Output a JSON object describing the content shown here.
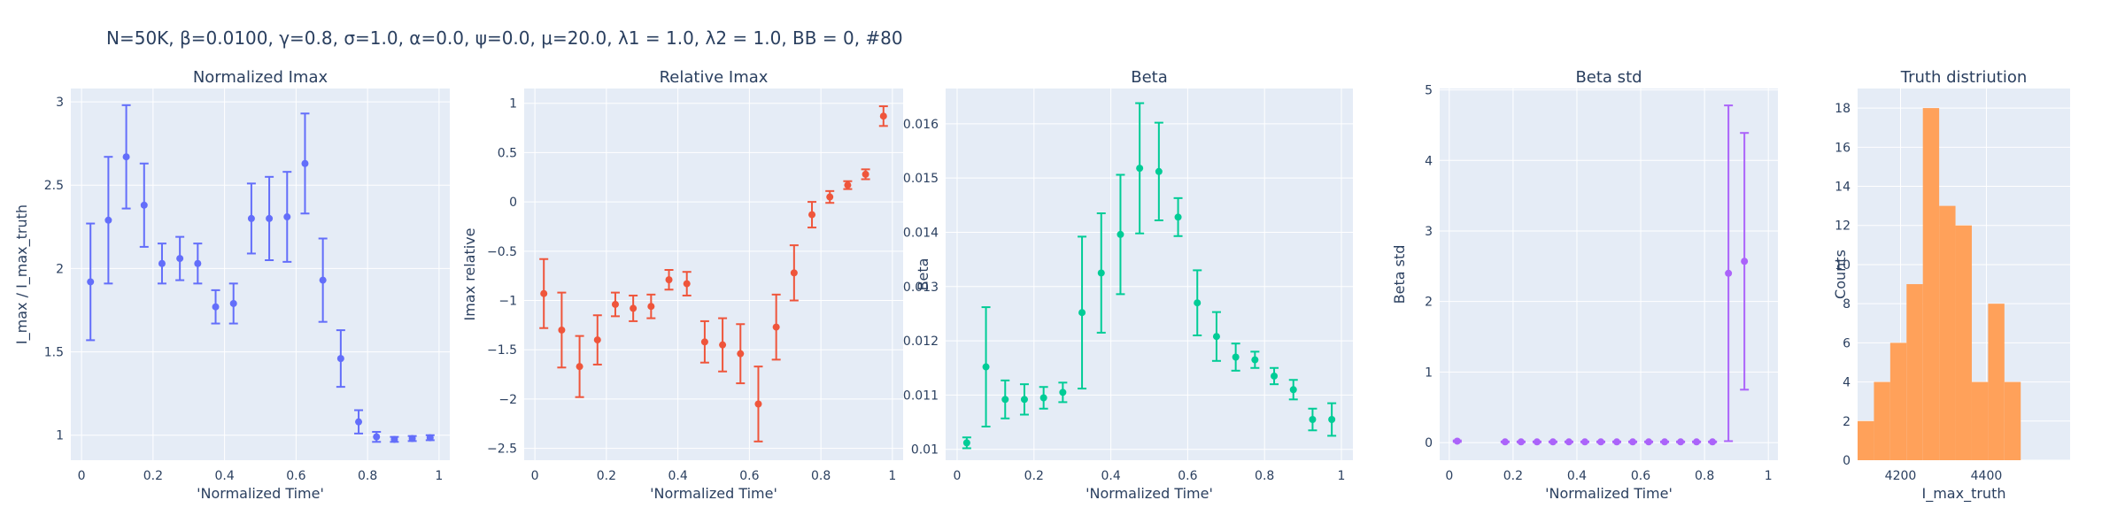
{
  "figure_title": "N=50K, β=0.0100, γ=0.8, σ=1.0,  α=0.0, ψ=0.0, μ=20.0, λ1 = 1.0, λ2 = 1.0, BB = 0, #80",
  "chart_data": [
    {
      "type": "scatter",
      "title": "Normalized Imax",
      "xlabel": "'Normalized Time'",
      "ylabel": "I_max / I_max_truth",
      "color": "#636efa",
      "xlim": [
        -0.03,
        1.03
      ],
      "ylim": [
        0.85,
        3.08
      ],
      "xticks": [
        0,
        0.2,
        0.4,
        0.6,
        0.8,
        1
      ],
      "xtick_labels": [
        "0",
        "0.2",
        "0.4",
        "0.6",
        "0.8",
        "1"
      ],
      "yticks": [
        1,
        1.5,
        2,
        2.5,
        3
      ],
      "ytick_labels": [
        "1",
        "1.5",
        "2",
        "2.5",
        "3"
      ],
      "x": [
        0.025,
        0.075,
        0.125,
        0.175,
        0.225,
        0.275,
        0.325,
        0.375,
        0.425,
        0.475,
        0.525,
        0.575,
        0.625,
        0.675,
        0.725,
        0.775,
        0.825,
        0.875,
        0.925,
        0.975
      ],
      "y": [
        1.92,
        2.29,
        2.67,
        2.38,
        2.03,
        2.06,
        2.03,
        1.77,
        1.79,
        2.3,
        2.3,
        2.31,
        2.63,
        1.93,
        1.46,
        1.08,
        0.99,
        0.975,
        0.98,
        0.985
      ],
      "err": [
        0.35,
        0.38,
        0.31,
        0.25,
        0.12,
        0.13,
        0.12,
        0.1,
        0.12,
        0.21,
        0.25,
        0.27,
        0.3,
        0.25,
        0.17,
        0.07,
        0.03,
        0.015,
        0.015,
        0.015
      ]
    },
    {
      "type": "scatter",
      "title": "Relative Imax",
      "xlabel": "'Normalized Time'",
      "ylabel": "Imax relative",
      "color": "#ef553b",
      "xlim": [
        -0.03,
        1.03
      ],
      "ylim": [
        -2.62,
        1.15
      ],
      "xticks": [
        0,
        0.2,
        0.4,
        0.6,
        0.8,
        1
      ],
      "xtick_labels": [
        "0",
        "0.2",
        "0.4",
        "0.6",
        "0.8",
        "1"
      ],
      "yticks": [
        -2.5,
        -2,
        -1.5,
        -1,
        -0.5,
        0,
        0.5,
        1
      ],
      "ytick_labels": [
        "−2.5",
        "−2",
        "−1.5",
        "−1",
        "−0.5",
        "0",
        "0.5",
        "1"
      ],
      "x": [
        0.025,
        0.075,
        0.125,
        0.175,
        0.225,
        0.275,
        0.325,
        0.375,
        0.425,
        0.475,
        0.525,
        0.575,
        0.625,
        0.675,
        0.725,
        0.775,
        0.825,
        0.875,
        0.925,
        0.975
      ],
      "y": [
        -0.93,
        -1.3,
        -1.67,
        -1.4,
        -1.04,
        -1.08,
        -1.06,
        -0.79,
        -0.83,
        -1.42,
        -1.45,
        -1.54,
        -2.05,
        -1.27,
        -0.72,
        -0.13,
        0.05,
        0.17,
        0.28,
        0.87
      ],
      "err": [
        0.35,
        0.38,
        0.31,
        0.25,
        0.12,
        0.13,
        0.12,
        0.1,
        0.12,
        0.21,
        0.27,
        0.3,
        0.38,
        0.33,
        0.28,
        0.13,
        0.06,
        0.04,
        0.05,
        0.1
      ]
    },
    {
      "type": "scatter",
      "title": "Beta",
      "xlabel": "'Normalized Time'",
      "ylabel": "Beta",
      "color": "#00cc96",
      "xlim": [
        -0.03,
        1.03
      ],
      "ylim": [
        0.0098,
        0.01665
      ],
      "xticks": [
        0,
        0.2,
        0.4,
        0.6,
        0.8,
        1
      ],
      "xtick_labels": [
        "0",
        "0.2",
        "0.4",
        "0.6",
        "0.8",
        "1"
      ],
      "yticks": [
        0.01,
        0.011,
        0.012,
        0.013,
        0.014,
        0.015,
        0.016
      ],
      "ytick_labels": [
        "0.01",
        "0.011",
        "0.012",
        "0.013",
        "0.014",
        "0.015",
        "0.016"
      ],
      "x": [
        0.025,
        0.075,
        0.125,
        0.175,
        0.225,
        0.275,
        0.325,
        0.375,
        0.425,
        0.475,
        0.525,
        0.575,
        0.625,
        0.675,
        0.725,
        0.775,
        0.825,
        0.875,
        0.925,
        0.975
      ],
      "y": [
        0.01012,
        0.01152,
        0.01092,
        0.01092,
        0.01095,
        0.01105,
        0.01252,
        0.01325,
        0.01396,
        0.01518,
        0.01512,
        0.01428,
        0.0127,
        0.01208,
        0.0117,
        0.01165,
        0.01135,
        0.0111,
        0.01055,
        0.01055
      ],
      "err": [
        0.0001,
        0.0011,
        0.00035,
        0.00028,
        0.0002,
        0.00018,
        0.0014,
        0.0011,
        0.0011,
        0.0012,
        0.0009,
        0.00035,
        0.0006,
        0.00045,
        0.00025,
        0.00015,
        0.00015,
        0.00018,
        0.0002,
        0.0003
      ]
    },
    {
      "type": "scatter",
      "title": "Beta std",
      "xlabel": "'Normalized Time'",
      "ylabel": "Beta std",
      "color": "#ab63fa",
      "xlim": [
        -0.03,
        1.03
      ],
      "ylim": [
        -0.25,
        5.02
      ],
      "xticks": [
        0,
        0.2,
        0.4,
        0.6,
        0.8,
        1
      ],
      "xtick_labels": [
        "0",
        "0.2",
        "0.4",
        "0.6",
        "0.8",
        "1"
      ],
      "yticks": [
        0,
        1,
        2,
        3,
        4,
        5
      ],
      "ytick_labels": [
        "0",
        "1",
        "2",
        "3",
        "4",
        "5"
      ],
      "x": [
        0.025,
        0.175,
        0.225,
        0.275,
        0.325,
        0.375,
        0.425,
        0.475,
        0.525,
        0.575,
        0.625,
        0.675,
        0.725,
        0.775,
        0.825,
        0.875,
        0.925
      ],
      "y": [
        0.02,
        0.01,
        0.01,
        0.01,
        0.01,
        0.01,
        0.01,
        0.01,
        0.01,
        0.01,
        0.01,
        0.01,
        0.01,
        0.01,
        0.01,
        2.4,
        2.57
      ],
      "err": [
        0.01,
        0.005,
        0.005,
        0.005,
        0.005,
        0.005,
        0.005,
        0.005,
        0.005,
        0.005,
        0.005,
        0.005,
        0.005,
        0.005,
        0.005,
        2.38,
        1.82
      ]
    },
    {
      "type": "bar",
      "title": "Truth distriution",
      "xlabel": "I_max_truth",
      "ylabel": "Counts",
      "color": "#ffa15a",
      "xlim": [
        4100,
        4595
      ],
      "ylim": [
        0,
        19
      ],
      "xticks": [
        4200,
        4400
      ],
      "xtick_labels": [
        "4200",
        "4400"
      ],
      "yticks": [
        0,
        2,
        4,
        6,
        8,
        10,
        12,
        14,
        16,
        18
      ],
      "ytick_labels": [
        "0",
        "2",
        "4",
        "6",
        "8",
        "10",
        "12",
        "14",
        "16",
        "18"
      ],
      "bin_edges": [
        4100,
        4138,
        4176,
        4214,
        4252,
        4290,
        4328,
        4366,
        4404,
        4442,
        4480,
        4518,
        4556,
        4595
      ],
      "counts": [
        2,
        4,
        6,
        9,
        18,
        13,
        12,
        4,
        8,
        4,
        0,
        0,
        0
      ]
    }
  ]
}
